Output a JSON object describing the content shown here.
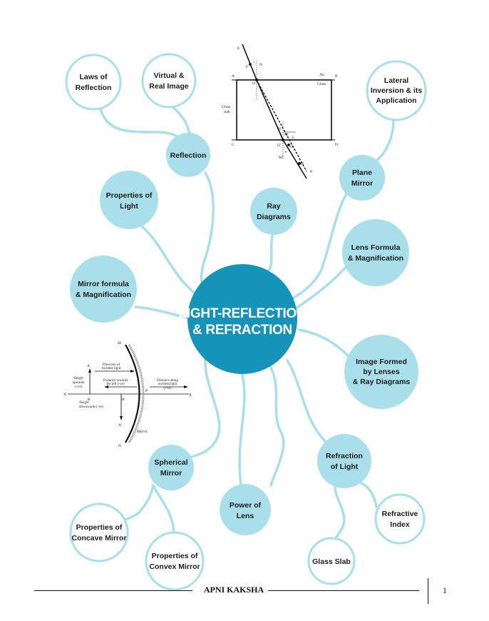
{
  "mindmap": {
    "center": {
      "lines": [
        "LIGHT-REFLECTION",
        "& REFRACTION"
      ]
    },
    "nodes": {
      "laws_of_reflection": [
        "Laws of",
        "Reflection"
      ],
      "virtual_real_image": [
        "Virtual &",
        "Real Image"
      ],
      "reflection": [
        "Reflection"
      ],
      "properties_of_light": [
        "Properties of",
        "Light"
      ],
      "ray_diagrams": [
        "Ray",
        "Diagrams"
      ],
      "lateral_inversion": [
        "Lateral",
        "Inversion & its",
        "Application"
      ],
      "plane_mirror": [
        "Plane",
        "Mirror"
      ],
      "lens_formula": [
        "Lens Formula",
        "& Magnification"
      ],
      "mirror_formula": [
        "Mirror formula",
        "& Magnification"
      ],
      "image_formed_lenses": [
        "Image Formed",
        "by Lenses",
        "& Ray Diagrams"
      ],
      "spherical_mirror": [
        "Spherical",
        "Mirror"
      ],
      "power_of_lens": [
        "Power of",
        "Lens"
      ],
      "refraction_of_light": [
        "Refraction",
        "of Light"
      ],
      "refractive_index": [
        "Refractive",
        "Index"
      ],
      "glass_slab": [
        "Glass Slab"
      ],
      "properties_concave": [
        "Properties of",
        "Concave Mirror"
      ],
      "properties_convex": [
        "Properties of",
        "Convex Mirror"
      ]
    }
  },
  "glass_slab_diagram": {
    "labels": {
      "A": "A",
      "B": "B",
      "C": "C",
      "D": "D",
      "air": "Air",
      "glass": "Glass",
      "glass_slab": "Glass",
      "glass_slab2": "slab",
      "E": "E",
      "F": "F",
      "N": "N",
      "O": "O",
      "i": "i",
      "r": "r",
      "N1": "N'",
      "M": "M",
      "L": "L",
      "O1": "O'",
      "G": "G",
      "e": "e",
      "M1": "M'",
      "H": "H",
      "P": "P"
    }
  },
  "mirror_sign_diagram": {
    "labels": {
      "M": "M",
      "A": "A",
      "B": "B",
      "B1": "B'",
      "A1": "A'",
      "N": "N",
      "P": "P",
      "X1": "X'",
      "X": "X",
      "incident1": "Direction of",
      "incident2": "incident light",
      "height_up1": "Height",
      "height_up2": "upwards",
      "height_up3": "(+ve)",
      "left1": "Distance towards",
      "left2": "the left (-ve)",
      "along1": "Distance along",
      "along2": "incident light",
      "along3": "(+ve)",
      "height_down1": "Height",
      "height_down2": "downwards (-ve)",
      "mirror": "Mirror"
    }
  },
  "footer": {
    "brand": "APNI KAKSHA",
    "page_number": "1"
  },
  "colors": {
    "node_fill": "#a8dfeb",
    "center_fill": "#1693b8",
    "node_stroke": "#a8dfeb",
    "line": "#a8dfeb",
    "text": "#1c1c1c"
  }
}
